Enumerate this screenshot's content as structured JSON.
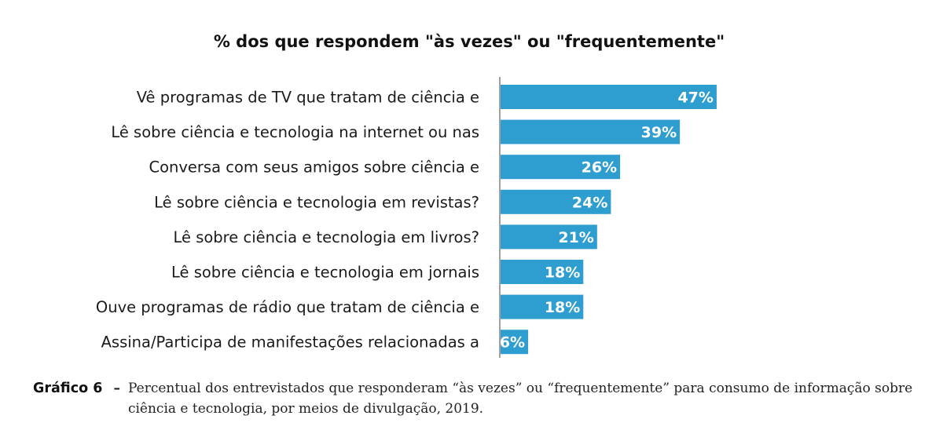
{
  "chart_data": {
    "type": "bar",
    "orientation": "horizontal",
    "title": "%  dos que respondem \"às vezes\" ou \"frequentemente\"",
    "categories": [
      "Vê programas de TV que tratam de ciência e",
      "Lê sobre ciência e tecnologia na internet ou nas",
      "Conversa com seus amigos sobre ciência e",
      "Lê sobre ciência e tecnologia em revistas?",
      "Lê sobre ciência e tecnologia em livros?",
      "Lê sobre ciência e tecnologia em jornais",
      "Ouve programas de rádio que tratam de ciência e",
      "Assina/Participa de manifestações relacionadas a"
    ],
    "values": [
      47,
      39,
      26,
      24,
      21,
      18,
      18,
      6
    ],
    "value_labels": [
      "47%",
      "39%",
      "26%",
      "24%",
      "21%",
      "18%",
      "18%",
      "6%"
    ],
    "xlim": [
      0,
      100
    ],
    "grid": false,
    "legend": "none",
    "bar_color": "#2e9ed1"
  },
  "caption": {
    "label": "Gráfico 6",
    "dash": "–",
    "text": "Percentual dos entrevistados que responderam “às vezes” ou “frequentemente” para consumo de informação sobre ciência e tecnologia, por meios de divulgação, 2019."
  }
}
